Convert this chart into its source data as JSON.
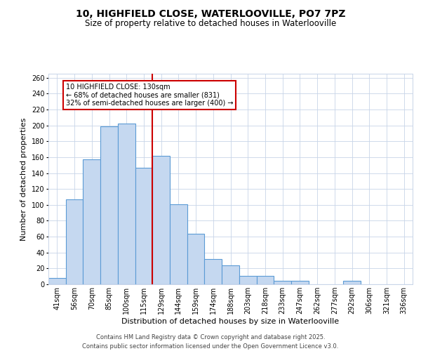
{
  "title": "10, HIGHFIELD CLOSE, WATERLOOVILLE, PO7 7PZ",
  "subtitle": "Size of property relative to detached houses in Waterlooville",
  "xlabel": "Distribution of detached houses by size in Waterlooville",
  "ylabel": "Number of detached properties",
  "categories": [
    "41sqm",
    "56sqm",
    "70sqm",
    "85sqm",
    "100sqm",
    "115sqm",
    "129sqm",
    "144sqm",
    "159sqm",
    "174sqm",
    "188sqm",
    "203sqm",
    "218sqm",
    "233sqm",
    "247sqm",
    "262sqm",
    "277sqm",
    "292sqm",
    "306sqm",
    "321sqm",
    "336sqm"
  ],
  "values": [
    8,
    107,
    157,
    199,
    202,
    147,
    162,
    101,
    64,
    32,
    24,
    11,
    11,
    4,
    4,
    0,
    0,
    4,
    0,
    0,
    0
  ],
  "bar_color": "#c5d8f0",
  "bar_edge_color": "#5b9bd5",
  "bar_edge_width": 0.8,
  "vline_color": "#cc0000",
  "vline_x_index": 6,
  "annotation_title": "10 HIGHFIELD CLOSE: 130sqm",
  "annotation_line1": "← 68% of detached houses are smaller (831)",
  "annotation_line2": "32% of semi-detached houses are larger (400) →",
  "annotation_box_edge": "#cc0000",
  "ylim": [
    0,
    265
  ],
  "yticks": [
    0,
    20,
    40,
    60,
    80,
    100,
    120,
    140,
    160,
    180,
    200,
    220,
    240,
    260
  ],
  "background_color": "#ffffff",
  "grid_color": "#c8d4e8",
  "footer_line1": "Contains HM Land Registry data © Crown copyright and database right 2025.",
  "footer_line2": "Contains public sector information licensed under the Open Government Licence v3.0.",
  "title_fontsize": 10,
  "subtitle_fontsize": 8.5,
  "axis_label_fontsize": 8,
  "tick_fontsize": 7,
  "footer_fontsize": 6
}
